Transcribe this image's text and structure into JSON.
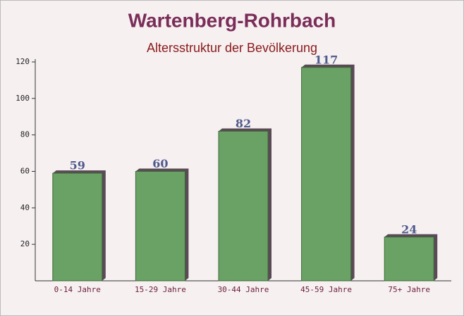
{
  "chart_data": {
    "type": "bar",
    "title": "Wartenberg-Rohrbach",
    "subtitle": "Altersstruktur der Bevölkerung",
    "categories": [
      "0-14 Jahre",
      "15-29 Jahre",
      "30-44 Jahre",
      "45-59 Jahre",
      "75+ Jahre"
    ],
    "values": [
      59,
      60,
      82,
      117,
      24
    ],
    "color": "#6aa165",
    "ylim": [
      0,
      120
    ],
    "yticks": [
      20,
      40,
      60,
      80,
      100,
      120
    ],
    "grid": false
  }
}
